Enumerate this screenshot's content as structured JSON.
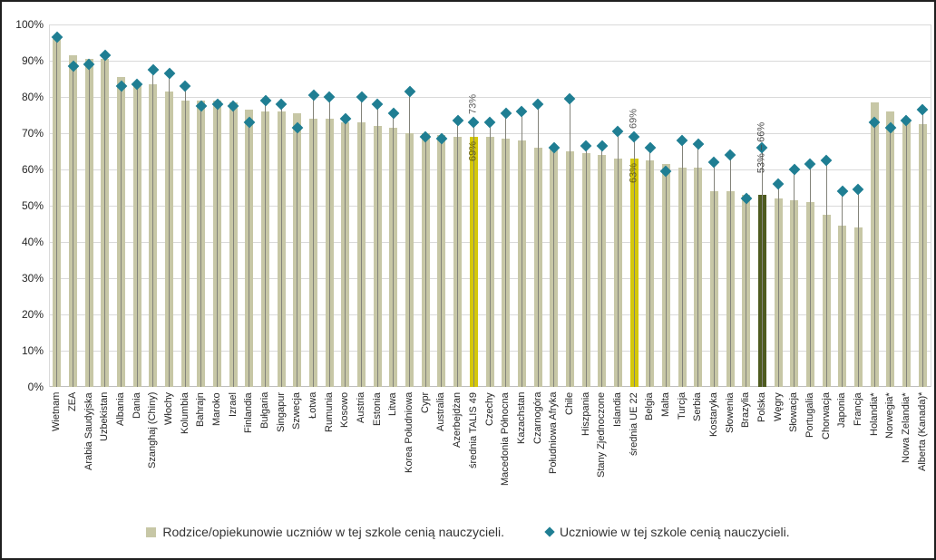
{
  "chart_data": {
    "type": "bar",
    "subtype": "bar-with-scatter-diamond-overlay",
    "title": "",
    "xlabel": "",
    "ylabel": "",
    "ylim": [
      0,
      100
    ],
    "grid": true,
    "yticks": [
      "0%",
      "10%",
      "20%",
      "30%",
      "40%",
      "50%",
      "60%",
      "70%",
      "80%",
      "90%",
      "100%"
    ],
    "categories": [
      "Wietnam",
      "ZEA",
      "Arabia Saudyjska",
      "Uzbekistan",
      "Albania",
      "Dania",
      "Szanghaj (Chiny)",
      "Włochy",
      "Kolumbia",
      "Bahrajn",
      "Maroko",
      "Izrael",
      "Finlandia",
      "Bułgaria",
      "Singapur",
      "Szwecja",
      "Łotwa",
      "Rumunia",
      "Kosowo",
      "Austria",
      "Estonia",
      "Litwa",
      "Korea Południowa",
      "Cypr",
      "Australia",
      "Azerbejdżan",
      "średnia TALIS 49",
      "Czechy",
      "Macedonia Północna",
      "Kazachstan",
      "Czarnogóra",
      "Południowa Afryka",
      "Chile",
      "Hiszpania",
      "Stany Zjednoczone",
      "Islandia",
      "średnia UE 22",
      "Belgia",
      "Malta",
      "Turcja",
      "Serbia",
      "Kostaryka",
      "Słowenia",
      "Brazylia",
      "Polska",
      "Węgry",
      "Słowacja",
      "Portugalia",
      "Chorwacja",
      "Japonia",
      "Francja",
      "Holandia*",
      "Norwegia*",
      "Nowa Zelandia*",
      "Alberta (Kanada)*"
    ],
    "series": [
      {
        "name": "Rodzice/opiekunowie uczniów w tej szkole cenią nauczycieli.",
        "type": "bar",
        "values": [
          96,
          91.5,
          90.5,
          90.5,
          85.5,
          83.5,
          83.5,
          81.5,
          79,
          79,
          79,
          78.5,
          76.5,
          76,
          76,
          75.5,
          74,
          74,
          73,
          73,
          72,
          71.5,
          70,
          70,
          69.5,
          69,
          69,
          69,
          68.5,
          68,
          66,
          65.5,
          65,
          64.5,
          64,
          63,
          63,
          62.5,
          61.5,
          60.5,
          60.5,
          54,
          54,
          53,
          53,
          52,
          51.5,
          51,
          47.5,
          44.5,
          44,
          78.5,
          76,
          74,
          72.5
        ]
      },
      {
        "name": "Uczniowie w tej szkole cenią nauczycieli.",
        "type": "scatter",
        "marker": "diamond",
        "values": [
          96.5,
          88.5,
          89,
          91.5,
          83,
          83.5,
          87.5,
          86.5,
          83,
          77.5,
          78,
          77.5,
          73,
          79,
          78,
          71.5,
          80.5,
          80,
          74,
          80,
          78,
          75.5,
          81.5,
          69,
          68.5,
          73.5,
          73,
          73,
          75.5,
          76,
          78,
          66,
          79.5,
          66.5,
          66.5,
          70.5,
          69,
          66,
          59.5,
          68,
          67,
          62,
          64,
          52,
          66,
          56,
          60,
          61.5,
          62.5,
          54,
          54.5,
          73,
          71.5,
          73.5,
          76.5
        ]
      }
    ],
    "highlights": [
      {
        "category": "średnia TALIS 49",
        "bar_color": "#d4c80a",
        "label_bar": "69%",
        "label_diamond": "73%"
      },
      {
        "category": "średnia UE 22",
        "bar_color": "#d4c80a",
        "label_bar": "63%",
        "label_diamond": "69%"
      },
      {
        "category": "Polska",
        "bar_color": "#4e5b1f",
        "label_combined": "53% – 66%"
      }
    ],
    "legend_position": "bottom-center",
    "colors": {
      "bar": "#c7c7a6",
      "bar_average": "#d4c80a",
      "bar_poland": "#4e5b1f",
      "diamond": "#1f7e93",
      "gridline": "#d9d9d9",
      "stem": "#83837a",
      "annotation_gray": "#595959",
      "annotation_olive": "#666014"
    }
  }
}
